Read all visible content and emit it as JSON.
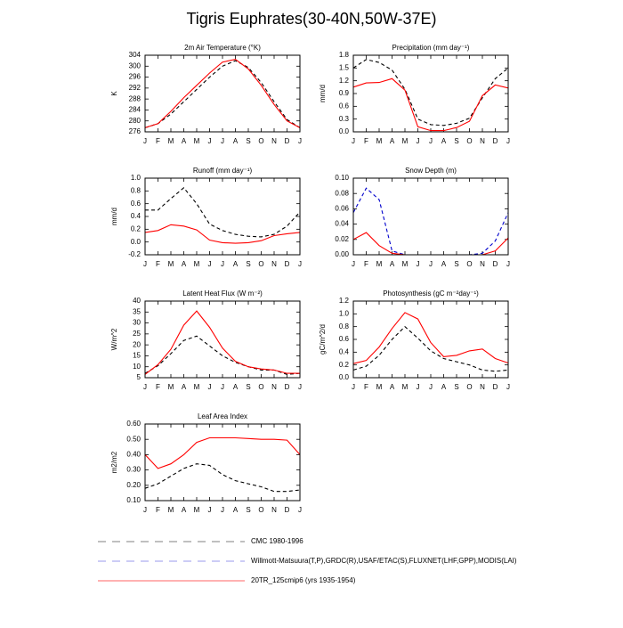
{
  "title": "Tigris Euphrates(30-40N,50W-37E)",
  "chart_data": [
    {
      "type": "line",
      "title": "2m Air Temperature (°K)",
      "ylabel": "K",
      "categories": [
        "J",
        "F",
        "M",
        "A",
        "M",
        "J",
        "J",
        "A",
        "S",
        "O",
        "N",
        "D",
        "J"
      ],
      "ylim": [
        276,
        304
      ],
      "yticks": [
        276,
        280,
        284,
        288,
        292,
        296,
        300,
        304
      ],
      "series": [
        {
          "name": "CMC 1980-1996",
          "color": "#000000",
          "line_style": "dashed",
          "values": [
            277.5,
            279,
            282.5,
            287,
            291.5,
            296,
            300,
            302,
            299.5,
            294,
            287,
            280.5,
            277.5
          ]
        },
        {
          "name": "20TR_125cmip6 (yrs 1935-1954)",
          "color": "#ff0000",
          "line_style": "solid",
          "values": [
            277.5,
            279,
            283.5,
            288.5,
            293,
            297.5,
            301.5,
            302.5,
            299,
            293,
            286,
            280,
            277.5
          ]
        }
      ]
    },
    {
      "type": "line",
      "title": "Precipitation (mm day⁻¹)",
      "ylabel": "mm/d",
      "categories": [
        "J",
        "F",
        "M",
        "A",
        "M",
        "J",
        "J",
        "A",
        "S",
        "O",
        "N",
        "D",
        "J"
      ],
      "ylim": [
        0,
        1.8
      ],
      "yticks": [
        {
          "value": 0,
          "label": "0.0"
        },
        0.3,
        0.6,
        0.9,
        1.2,
        1.5,
        1.8
      ],
      "series": [
        {
          "name": "CMC 1980-1996",
          "color": "#000000",
          "line_style": "dashed",
          "values": [
            1.5,
            1.7,
            1.63,
            1.45,
            1.0,
            0.3,
            0.17,
            0.15,
            0.2,
            0.32,
            0.8,
            1.25,
            1.5
          ]
        },
        {
          "name": "20TR_125cmip6 (yrs 1935-1954)",
          "color": "#ff0000",
          "line_style": "solid",
          "values": [
            1.05,
            1.15,
            1.16,
            1.25,
            0.98,
            0.12,
            0.03,
            0.03,
            0.1,
            0.25,
            0.85,
            1.1,
            1.03
          ]
        }
      ]
    },
    {
      "type": "line",
      "title": "Runoff (mm day⁻¹)",
      "ylabel": "mm/d",
      "categories": [
        "J",
        "F",
        "M",
        "A",
        "M",
        "J",
        "J",
        "A",
        "S",
        "O",
        "N",
        "D",
        "J"
      ],
      "ylim": [
        -0.2,
        1.0
      ],
      "yticks": [
        -0.2,
        {
          "value": 0,
          "label": "0.0"
        },
        0.2,
        0.4,
        0.6,
        0.8,
        {
          "value": 1,
          "label": "1.0"
        }
      ],
      "series": [
        {
          "name": "CMC 1980-1996",
          "color": "#000000",
          "line_style": "dashed",
          "values": [
            0.5,
            0.5,
            0.68,
            0.85,
            0.6,
            0.28,
            0.18,
            0.12,
            0.09,
            0.08,
            0.12,
            0.25,
            0.47
          ]
        },
        {
          "name": "20TR_125cmip6 (yrs 1935-1954)",
          "color": "#ff0000",
          "line_style": "solid",
          "values": [
            0.15,
            0.18,
            0.27,
            0.25,
            0.19,
            0.03,
            -0.01,
            -0.02,
            -0.01,
            0.02,
            0.1,
            0.13,
            0.15
          ]
        }
      ]
    },
    {
      "type": "line",
      "title": "Snow Depth (m)",
      "categories": [
        "J",
        "F",
        "M",
        "A",
        "M",
        "J",
        "J",
        "A",
        "S",
        "O",
        "N",
        "D",
        "J"
      ],
      "ylim": [
        0,
        0.1
      ],
      "yticks": [
        {
          "value": 0,
          "label": "0.00"
        },
        {
          "value": 0.02,
          "label": "0.02"
        },
        {
          "value": 0.04,
          "label": "0.04"
        },
        {
          "value": 0.06,
          "label": "0.06"
        },
        {
          "value": 0.08,
          "label": "0.08"
        },
        {
          "value": 0.1,
          "label": "0.10"
        }
      ],
      "series": [
        {
          "name": "Willmott-Matsuura(T,P),GRDC(R),USAF/ETAC(S),FLUXNET(LHF,GPP),MODIS(LAI)",
          "color": "#0000cc",
          "line_style": "dashed",
          "values": [
            0.055,
            0.087,
            0.072,
            0.005,
            0,
            0,
            0,
            0,
            0,
            0,
            0.002,
            0.018,
            0.055
          ]
        },
        {
          "name": "20TR_125cmip6 (yrs 1935-1954)",
          "color": "#ff0000",
          "line_style": "solid",
          "values": [
            0.02,
            0.029,
            0.012,
            0.002,
            0,
            0,
            0,
            0,
            0,
            0,
            0,
            0.005,
            0.022
          ]
        }
      ]
    },
    {
      "type": "line",
      "title": "Latent Heat Flux (W m⁻²)",
      "ylabel": "W/m^2",
      "categories": [
        "J",
        "F",
        "M",
        "A",
        "M",
        "J",
        "J",
        "A",
        "S",
        "O",
        "N",
        "D",
        "J"
      ],
      "ylim": [
        5,
        40
      ],
      "yticks": [
        5,
        10,
        15,
        20,
        25,
        30,
        35,
        40
      ],
      "series": [
        {
          "name": "CMC 1980-1996",
          "color": "#000000",
          "line_style": "dashed",
          "values": [
            7,
            10.5,
            16,
            22,
            24,
            19.5,
            15,
            12,
            10,
            8.5,
            8.5,
            6.5,
            7
          ]
        },
        {
          "name": "20TR_125cmip6 (yrs 1935-1954)",
          "color": "#ff0000",
          "line_style": "solid",
          "values": [
            6.5,
            11,
            18,
            29,
            35.5,
            28,
            18.5,
            12.5,
            10,
            9,
            8.5,
            7,
            7
          ]
        }
      ]
    },
    {
      "type": "line",
      "title": "Photosynthesis (gC m⁻²day⁻¹)",
      "ylabel": "gC/m^2/d",
      "categories": [
        "J",
        "F",
        "M",
        "A",
        "M",
        "J",
        "J",
        "A",
        "S",
        "O",
        "N",
        "D",
        "J"
      ],
      "ylim": [
        0,
        1.2
      ],
      "yticks": [
        {
          "value": 0,
          "label": "0.0"
        },
        0.2,
        0.4,
        0.6,
        0.8,
        {
          "value": 1,
          "label": "1.0"
        },
        1.2
      ],
      "series": [
        {
          "name": "CMC 1980-1996",
          "color": "#000000",
          "line_style": "dashed",
          "values": [
            0.12,
            0.18,
            0.35,
            0.6,
            0.8,
            0.62,
            0.42,
            0.3,
            0.25,
            0.2,
            0.12,
            0.1,
            0.12
          ]
        },
        {
          "name": "20TR_125cmip6 (yrs 1935-1954)",
          "color": "#ff0000",
          "line_style": "solid",
          "values": [
            0.22,
            0.27,
            0.48,
            0.77,
            1.02,
            0.92,
            0.55,
            0.33,
            0.35,
            0.42,
            0.45,
            0.3,
            0.23
          ]
        }
      ]
    },
    {
      "type": "line",
      "title": "Leaf Area Index",
      "ylabel": "m2/m2",
      "categories": [
        "J",
        "F",
        "M",
        "A",
        "M",
        "J",
        "J",
        "A",
        "S",
        "O",
        "N",
        "D",
        "J"
      ],
      "ylim": [
        0.1,
        0.6
      ],
      "yticks": [
        {
          "value": 0.1,
          "label": "0.10"
        },
        {
          "value": 0.2,
          "label": "0.20"
        },
        {
          "value": 0.3,
          "label": "0.30"
        },
        {
          "value": 0.4,
          "label": "0.40"
        },
        {
          "value": 0.5,
          "label": "0.50"
        },
        {
          "value": 0.6,
          "label": "0.60"
        }
      ],
      "series": [
        {
          "name": "CMC 1980-1996",
          "color": "#000000",
          "line_style": "dashed",
          "values": [
            0.18,
            0.21,
            0.26,
            0.31,
            0.34,
            0.33,
            0.27,
            0.23,
            0.21,
            0.19,
            0.16,
            0.16,
            0.17
          ]
        },
        {
          "name": "20TR_125cmip6 (yrs 1935-1954)",
          "color": "#ff0000",
          "line_style": "solid",
          "values": [
            0.4,
            0.31,
            0.34,
            0.4,
            0.48,
            0.51,
            0.51,
            0.51,
            0.505,
            0.5,
            0.5,
            0.495,
            0.4
          ]
        }
      ]
    }
  ]
}
